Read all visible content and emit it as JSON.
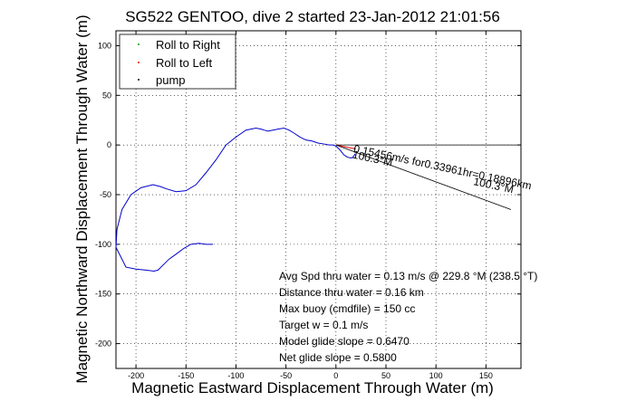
{
  "chart_data": {
    "type": "line",
    "title": "SG522 GENTOO, dive 2 started 23-Jan-2012 21:01:56",
    "xlabel": "Magnetic Eastward Displacement Through Water (m)",
    "ylabel": "Magnetic Northward Displacement Through Water (m)",
    "xlim": [
      -220,
      185
    ],
    "ylim": [
      -225,
      115
    ],
    "xticks": [
      -200,
      -150,
      -100,
      -50,
      0,
      50,
      100,
      150
    ],
    "yticks": [
      -200,
      -150,
      -100,
      -50,
      0,
      50,
      100
    ],
    "grid": true,
    "legend_position": "top-left",
    "legend": [
      {
        "label": "Roll to Right",
        "color": "#00a000"
      },
      {
        "label": "Roll to Left",
        "color": "#ff0000"
      },
      {
        "label": "pump",
        "color": "#000000"
      }
    ],
    "series": [
      {
        "color": "#0000cc",
        "x": [
          -123,
          -130,
          -137,
          -145,
          -152,
          -160,
          -167,
          -172,
          -178,
          -182,
          -190,
          -200,
          -210,
          -220,
          -219,
          -214,
          -205,
          -195,
          -183,
          -175,
          -170,
          -160,
          -150,
          -140,
          -130,
          -120,
          -110,
          -100,
          -90,
          -85,
          -80,
          -75,
          -72,
          -68,
          -63,
          -58,
          -52,
          -47,
          -42,
          -36,
          -30,
          -24,
          -18,
          -12,
          -7,
          -3,
          0,
          4,
          8,
          11,
          14,
          16,
          18,
          19
        ],
        "y": [
          -100,
          -100,
          -99,
          -100,
          -104,
          -110,
          -115,
          -120,
          -126,
          -127,
          -126,
          -125,
          -123,
          -103,
          -85,
          -65,
          -50,
          -43,
          -40,
          -42,
          -44,
          -47,
          -46,
          -40,
          -28,
          -15,
          0,
          8,
          15,
          16,
          17,
          16,
          15,
          14,
          15,
          16,
          17,
          15,
          12,
          8,
          5,
          4,
          2,
          1,
          0,
          0,
          -1,
          -5,
          -10,
          -12,
          -13,
          -13,
          -11,
          -9
        ]
      },
      {
        "color": "#ff0000",
        "x": [
          0,
          5,
          10,
          15,
          20
        ],
        "y": [
          0,
          -1,
          -2,
          -3,
          -4
        ]
      }
    ],
    "vectors": [
      {
        "color": "#000000",
        "x": [
          0,
          185
        ],
        "y": [
          0,
          0
        ]
      },
      {
        "color": "#000000",
        "x": [
          0,
          175
        ],
        "y": [
          0,
          -65
        ]
      }
    ],
    "annotations": [
      {
        "text": "0.15456m/s for0.33961hr=0.18896km",
        "x": 17,
        "y": -7,
        "angle_deg": 12
      },
      {
        "text": "100.3°M",
        "x": 16,
        "y": -13,
        "angle_deg": 12
      },
      {
        "text": "100.3°M",
        "x": 137,
        "y": -40,
        "angle_deg": 12
      }
    ],
    "stats_box": [
      "Avg Spd thru water = 0.13 m/s @ 229.8   °M (238.5 °T)",
      "Distance thru water = 0.16 km",
      "Max buoy (cmdfile) = 150 cc",
      "Target w = 0.1 m/s",
      "Model glide slope = 0.6470",
      "Net glide slope = 0.5800"
    ]
  }
}
